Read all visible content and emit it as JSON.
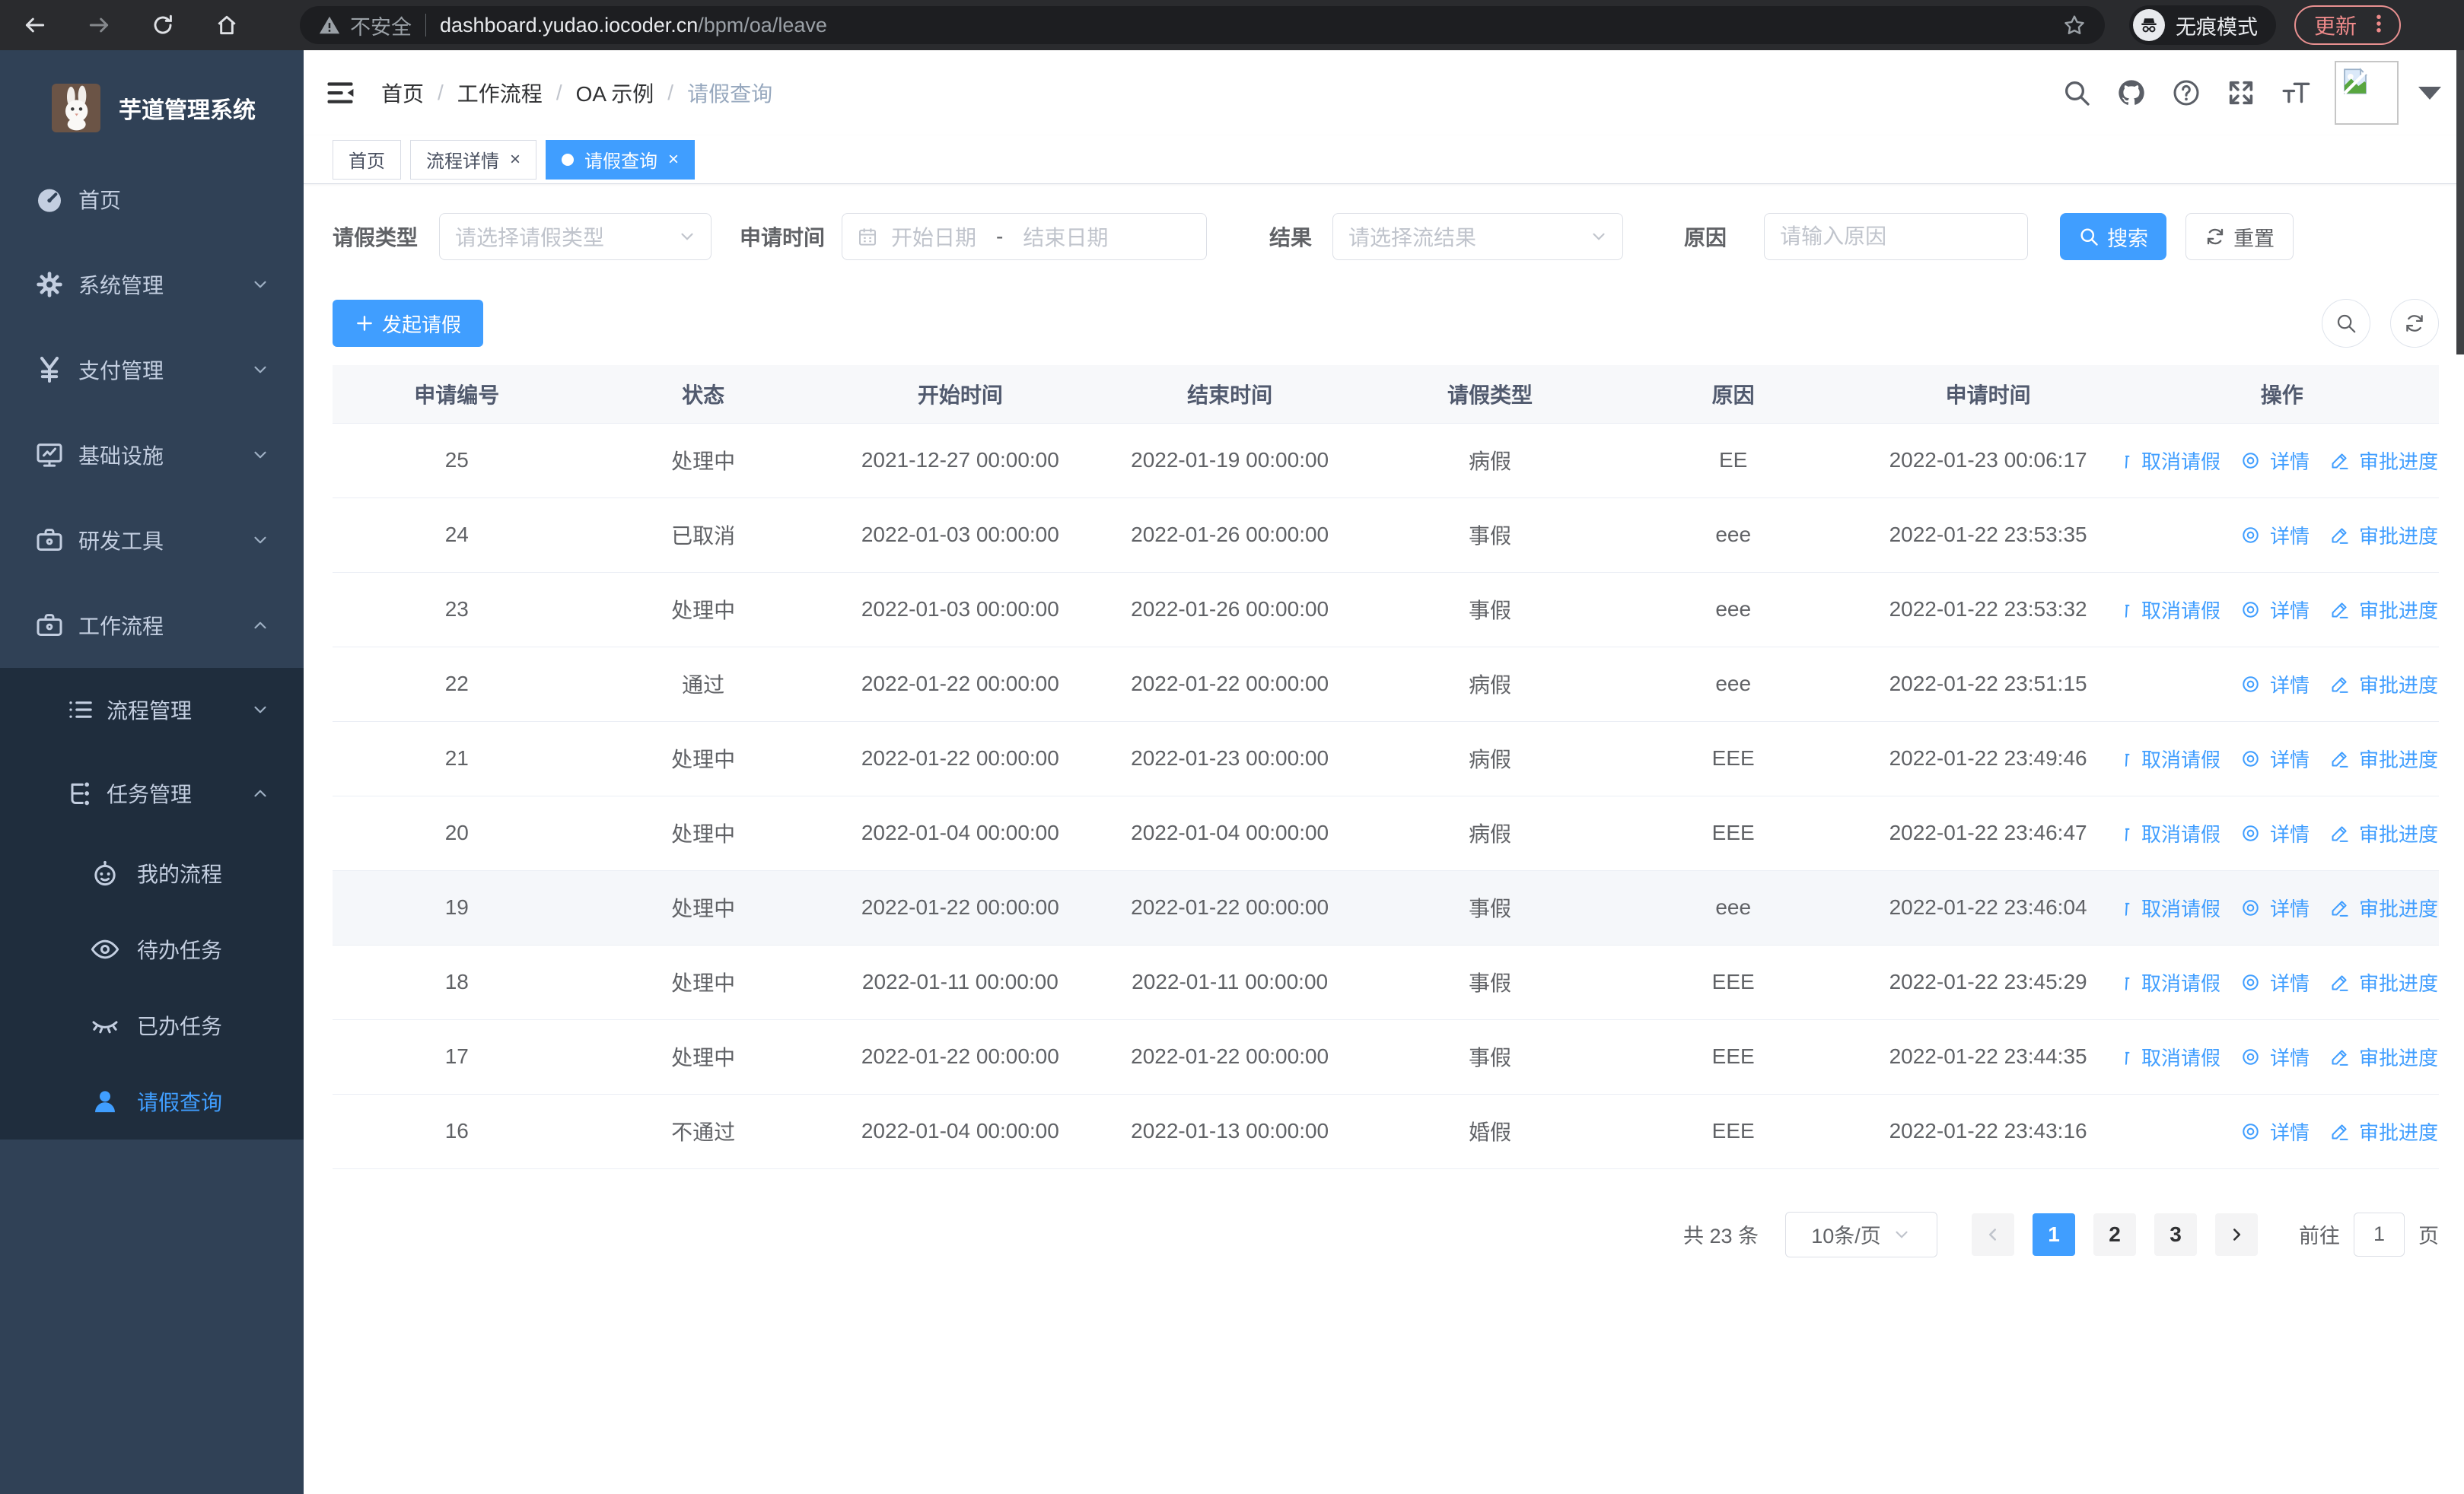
{
  "browser": {
    "security_label": "不安全",
    "url_host": "dashboard.yudao.iocoder.cn",
    "url_path": "/bpm/oa/leave",
    "incognito_label": "无痕模式",
    "update_label": "更新"
  },
  "sidebar": {
    "title": "芋道管理系统",
    "menu": [
      {
        "label": "首页",
        "icon": "dashboard",
        "level": 1
      },
      {
        "label": "系统管理",
        "icon": "gear",
        "level": 1,
        "chevron": "down"
      },
      {
        "label": "支付管理",
        "icon": "yen",
        "level": 1,
        "chevron": "down"
      },
      {
        "label": "基础设施",
        "icon": "infra",
        "level": 1,
        "chevron": "down"
      },
      {
        "label": "研发工具",
        "icon": "tools",
        "level": 1,
        "chevron": "down"
      },
      {
        "label": "工作流程",
        "icon": "workflow",
        "level": 1,
        "chevron": "up"
      },
      {
        "label": "流程管理",
        "icon": "process",
        "level": 2,
        "chevron": "down",
        "group": true
      },
      {
        "label": "任务管理",
        "icon": "tasks",
        "level": 2,
        "chevron": "up",
        "group": true
      },
      {
        "label": "我的流程",
        "icon": "robot",
        "level": 3,
        "group": true
      },
      {
        "label": "待办任务",
        "icon": "eye-open",
        "level": 3,
        "group": true
      },
      {
        "label": "已办任务",
        "icon": "eye-closed",
        "level": 3,
        "group": true
      },
      {
        "label": "请假查询",
        "icon": "user",
        "level": 3,
        "group": true,
        "active": true
      }
    ]
  },
  "header": {
    "breadcrumb": [
      "首页",
      "工作流程",
      "OA 示例",
      "请假查询"
    ]
  },
  "tabs": [
    {
      "label": "首页",
      "closable": false,
      "active": false
    },
    {
      "label": "流程详情",
      "closable": true,
      "active": false
    },
    {
      "label": "请假查询",
      "closable": true,
      "active": true
    }
  ],
  "filters": {
    "leave_type": {
      "label": "请假类型",
      "placeholder": "请选择请假类型"
    },
    "apply_time": {
      "label": "申请时间",
      "start_placeholder": "开始日期",
      "separator": "-",
      "end_placeholder": "结束日期"
    },
    "result": {
      "label": "结果",
      "placeholder": "请选择流结果"
    },
    "reason": {
      "label": "原因",
      "placeholder": "请输入原因"
    },
    "search_label": "搜索",
    "reset_label": "重置"
  },
  "toolbar": {
    "create_label": "发起请假"
  },
  "table": {
    "columns": [
      "申请编号",
      "状态",
      "开始时间",
      "结束时间",
      "请假类型",
      "原因",
      "申请时间",
      "操作"
    ],
    "action_labels": {
      "cancel": "取消请假",
      "detail": "详情",
      "progress": "审批进度"
    },
    "rows": [
      {
        "id": "25",
        "status": "处理中",
        "start": "2021-12-27 00:00:00",
        "end": "2022-01-19 00:00:00",
        "type": "病假",
        "reason": "EE",
        "applyTime": "2022-01-23 00:06:17",
        "actions": [
          "cancel",
          "detail",
          "progress"
        ]
      },
      {
        "id": "24",
        "status": "已取消",
        "start": "2022-01-03 00:00:00",
        "end": "2022-01-26 00:00:00",
        "type": "事假",
        "reason": "eee",
        "applyTime": "2022-01-22 23:53:35",
        "actions": [
          "detail",
          "progress"
        ]
      },
      {
        "id": "23",
        "status": "处理中",
        "start": "2022-01-03 00:00:00",
        "end": "2022-01-26 00:00:00",
        "type": "事假",
        "reason": "eee",
        "applyTime": "2022-01-22 23:53:32",
        "actions": [
          "cancel",
          "detail",
          "progress"
        ]
      },
      {
        "id": "22",
        "status": "通过",
        "start": "2022-01-22 00:00:00",
        "end": "2022-01-22 00:00:00",
        "type": "病假",
        "reason": "eee",
        "applyTime": "2022-01-22 23:51:15",
        "actions": [
          "detail",
          "progress"
        ]
      },
      {
        "id": "21",
        "status": "处理中",
        "start": "2022-01-22 00:00:00",
        "end": "2022-01-23 00:00:00",
        "type": "病假",
        "reason": "EEE",
        "applyTime": "2022-01-22 23:49:46",
        "actions": [
          "cancel",
          "detail",
          "progress"
        ]
      },
      {
        "id": "20",
        "status": "处理中",
        "start": "2022-01-04 00:00:00",
        "end": "2022-01-04 00:00:00",
        "type": "病假",
        "reason": "EEE",
        "applyTime": "2022-01-22 23:46:47",
        "actions": [
          "cancel",
          "detail",
          "progress"
        ]
      },
      {
        "id": "19",
        "status": "处理中",
        "start": "2022-01-22 00:00:00",
        "end": "2022-01-22 00:00:00",
        "type": "事假",
        "reason": "eee",
        "applyTime": "2022-01-22 23:46:04",
        "actions": [
          "cancel",
          "detail",
          "progress"
        ],
        "highlighted": true
      },
      {
        "id": "18",
        "status": "处理中",
        "start": "2022-01-11 00:00:00",
        "end": "2022-01-11 00:00:00",
        "type": "事假",
        "reason": "EEE",
        "applyTime": "2022-01-22 23:45:29",
        "actions": [
          "cancel",
          "detail",
          "progress"
        ]
      },
      {
        "id": "17",
        "status": "处理中",
        "start": "2022-01-22 00:00:00",
        "end": "2022-01-22 00:00:00",
        "type": "事假",
        "reason": "EEE",
        "applyTime": "2022-01-22 23:44:35",
        "actions": [
          "cancel",
          "detail",
          "progress"
        ]
      },
      {
        "id": "16",
        "status": "不通过",
        "start": "2022-01-04 00:00:00",
        "end": "2022-01-13 00:00:00",
        "type": "婚假",
        "reason": "EEE",
        "applyTime": "2022-01-22 23:43:16",
        "actions": [
          "detail",
          "progress"
        ]
      }
    ]
  },
  "pagination": {
    "total_label": "共 23 条",
    "page_size_label": "10条/页",
    "pages": [
      "1",
      "2",
      "3"
    ],
    "active_page": "1",
    "goto_label": "前往",
    "goto_value": "1",
    "page_suffix_label": "页"
  },
  "colors": {
    "accent": "#409eff",
    "sidebar_bg": "#304156",
    "submenu_bg": "#1f2d3d"
  }
}
